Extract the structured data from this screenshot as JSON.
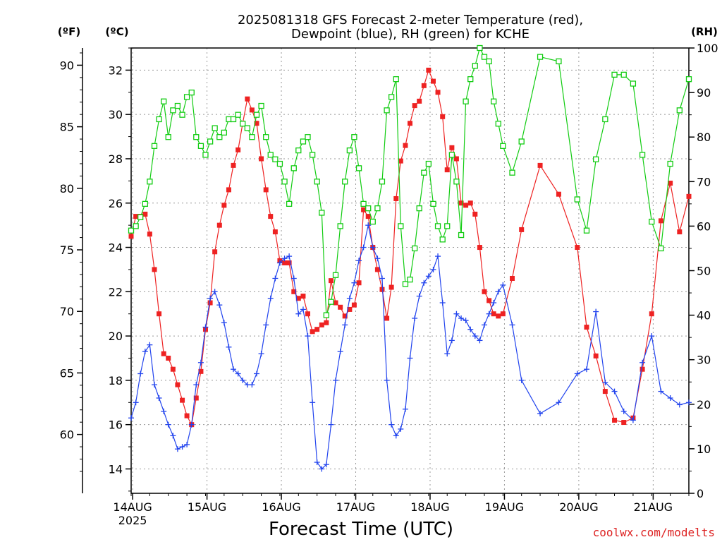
{
  "chart_data": {
    "type": "line",
    "title_line1": "2025081318 GFS Forecast 2-meter Temperature (red),",
    "title_line2": "Dewpoint (blue), RH (green) for KCHE",
    "xlabel": "Forecast Time (UTC)",
    "unit_f": "(ºF)",
    "unit_c": "(ºC)",
    "unit_rh": "(RH)",
    "credit": "coolwx.com/modelts",
    "x_ticks": [
      {
        "day": 13.77,
        "label": "14AUG",
        "sub": "2025"
      },
      {
        "day": 14.77,
        "label": "15AUG",
        "sub": ""
      },
      {
        "day": 15.77,
        "label": "16AUG",
        "sub": ""
      },
      {
        "day": 16.77,
        "label": "17AUG",
        "sub": ""
      },
      {
        "day": 17.77,
        "label": "18AUG",
        "sub": ""
      },
      {
        "day": 18.77,
        "label": "19AUG",
        "sub": ""
      },
      {
        "day": 19.77,
        "label": "20AUG",
        "sub": ""
      },
      {
        "day": 20.77,
        "label": "21AUG",
        "sub": ""
      }
    ],
    "x_range": [
      13.75,
      21.25
    ],
    "c_range": [
      12.9,
      33.0
    ],
    "c_ticks": [
      14,
      16,
      18,
      20,
      22,
      24,
      26,
      28,
      30,
      32
    ],
    "f_ticks": [
      60,
      65,
      70,
      75,
      80,
      85,
      90
    ],
    "rh_range": [
      0,
      100
    ],
    "rh_ticks": [
      0,
      10,
      20,
      30,
      40,
      50,
      60,
      70,
      80,
      90,
      100
    ],
    "grid": true,
    "colors": {
      "temperature": "#ee2222",
      "dewpoint": "#2244ee",
      "rh": "#11cc11"
    },
    "series": [
      {
        "name": "Temperature (red)",
        "axis": "C",
        "x": [
          13.75,
          13.813,
          13.875,
          13.938,
          14.0,
          14.063,
          14.125,
          14.188,
          14.25,
          14.313,
          14.375,
          14.438,
          14.5,
          14.563,
          14.625,
          14.688,
          14.75,
          14.813,
          14.875,
          14.938,
          15.0,
          15.063,
          15.125,
          15.188,
          15.25,
          15.313,
          15.375,
          15.438,
          15.5,
          15.563,
          15.625,
          15.688,
          15.75,
          15.813,
          15.875,
          15.938,
          16.0,
          16.063,
          16.125,
          16.188,
          16.25,
          16.313,
          16.375,
          16.438,
          16.5,
          16.563,
          16.625,
          16.688,
          16.75,
          16.813,
          16.875,
          16.938,
          17.0,
          17.063,
          17.125,
          17.188,
          17.25,
          17.313,
          17.375,
          17.438,
          17.5,
          17.563,
          17.625,
          17.688,
          17.75,
          17.813,
          17.875,
          17.938,
          18.0,
          18.063,
          18.125,
          18.188,
          18.25,
          18.313,
          18.375,
          18.438,
          18.5,
          18.563,
          18.625,
          18.688,
          18.75,
          18.875,
          19.0,
          19.25,
          19.5,
          19.75,
          19.875,
          20.0,
          20.125,
          20.25,
          20.375,
          20.5,
          20.625,
          20.75,
          20.875,
          21.0,
          21.125,
          21.25
        ],
        "values": [
          24.5,
          25.4,
          25.4,
          25.5,
          24.6,
          23.0,
          21.0,
          19.2,
          19.0,
          18.5,
          17.8,
          17.1,
          16.4,
          16.0,
          17.2,
          18.4,
          20.3,
          21.5,
          23.8,
          25.0,
          25.9,
          26.6,
          27.7,
          28.4,
          29.6,
          30.7,
          30.2,
          29.6,
          28.0,
          26.6,
          25.4,
          24.7,
          23.4,
          23.3,
          23.3,
          22.0,
          21.7,
          21.8,
          21.0,
          20.2,
          20.3,
          20.5,
          20.6,
          22.5,
          21.5,
          21.3,
          20.9,
          21.2,
          21.4,
          22.4,
          25.7,
          25.4,
          24.0,
          23.0,
          22.1,
          20.8,
          22.2,
          26.2,
          27.9,
          28.6,
          29.6,
          30.4,
          30.6,
          31.3,
          32.0,
          31.5,
          31.0,
          29.9,
          27.5,
          28.5,
          28.0,
          26.0,
          25.9,
          26.0,
          25.5,
          24.0,
          22.0,
          21.6,
          21.0,
          20.9,
          21.0,
          22.6,
          24.8,
          27.7,
          26.4,
          24.0,
          20.4,
          19.1,
          17.5,
          16.2,
          16.1,
          16.3,
          18.5,
          21.0,
          25.2,
          26.9,
          24.7,
          26.3
        ],
        "marker": "square-filled"
      },
      {
        "name": "Dewpoint (blue)",
        "axis": "C",
        "x": [
          13.75,
          13.813,
          13.875,
          13.938,
          14.0,
          14.063,
          14.125,
          14.188,
          14.25,
          14.313,
          14.375,
          14.438,
          14.5,
          14.563,
          14.625,
          14.688,
          14.75,
          14.813,
          14.875,
          14.938,
          15.0,
          15.063,
          15.125,
          15.188,
          15.25,
          15.313,
          15.375,
          15.438,
          15.5,
          15.563,
          15.625,
          15.688,
          15.75,
          15.813,
          15.875,
          15.938,
          16.0,
          16.063,
          16.125,
          16.188,
          16.25,
          16.313,
          16.375,
          16.438,
          16.5,
          16.563,
          16.625,
          16.688,
          16.75,
          16.813,
          16.875,
          16.938,
          17.0,
          17.063,
          17.125,
          17.188,
          17.25,
          17.313,
          17.375,
          17.438,
          17.5,
          17.563,
          17.625,
          17.688,
          17.75,
          17.813,
          17.875,
          17.938,
          18.0,
          18.063,
          18.125,
          18.188,
          18.25,
          18.313,
          18.375,
          18.438,
          18.5,
          18.563,
          18.625,
          18.688,
          18.75,
          18.875,
          19.0,
          19.25,
          19.5,
          19.75,
          19.875,
          20.0,
          20.125,
          20.25,
          20.375,
          20.5,
          20.625,
          20.75,
          20.875,
          21.0,
          21.125,
          21.25
        ],
        "values": [
          16.3,
          17.0,
          18.3,
          19.3,
          19.6,
          17.8,
          17.2,
          16.6,
          16.0,
          15.5,
          14.9,
          15.0,
          15.1,
          16.0,
          17.8,
          18.8,
          20.4,
          21.7,
          22.0,
          21.4,
          20.6,
          19.5,
          18.5,
          18.3,
          18.0,
          17.8,
          17.8,
          18.3,
          19.2,
          20.5,
          21.7,
          22.6,
          23.3,
          23.5,
          23.6,
          22.6,
          21.0,
          21.2,
          20.0,
          17.0,
          14.3,
          14.0,
          14.2,
          16.0,
          18.0,
          19.3,
          20.5,
          21.7,
          22.4,
          23.4,
          24.0,
          25.0,
          24.0,
          23.5,
          22.6,
          18.0,
          16.0,
          15.5,
          15.8,
          16.7,
          19.0,
          20.8,
          21.8,
          22.4,
          22.7,
          23.0,
          23.6,
          21.5,
          19.2,
          19.8,
          21.0,
          20.8,
          20.7,
          20.3,
          20.0,
          19.8,
          20.5,
          21.0,
          21.5,
          22.0,
          22.3,
          20.5,
          18.0,
          16.5,
          17.0,
          18.3,
          18.5,
          21.1,
          17.9,
          17.5,
          16.6,
          16.2,
          18.8,
          20.0,
          17.5,
          17.2,
          16.9,
          17.0
        ],
        "marker": "plus"
      },
      {
        "name": "RH (green)",
        "axis": "RH",
        "x": [
          13.75,
          13.813,
          13.875,
          13.938,
          14.0,
          14.063,
          14.125,
          14.188,
          14.25,
          14.313,
          14.375,
          14.438,
          14.5,
          14.563,
          14.625,
          14.688,
          14.75,
          14.813,
          14.875,
          14.938,
          15.0,
          15.063,
          15.125,
          15.188,
          15.25,
          15.313,
          15.375,
          15.438,
          15.5,
          15.563,
          15.625,
          15.688,
          15.75,
          15.813,
          15.875,
          15.938,
          16.0,
          16.063,
          16.125,
          16.188,
          16.25,
          16.313,
          16.375,
          16.438,
          16.5,
          16.563,
          16.625,
          16.688,
          16.75,
          16.813,
          16.875,
          16.938,
          17.0,
          17.063,
          17.125,
          17.188,
          17.25,
          17.313,
          17.375,
          17.438,
          17.5,
          17.563,
          17.625,
          17.688,
          17.75,
          17.813,
          17.875,
          17.938,
          18.0,
          18.063,
          18.125,
          18.188,
          18.25,
          18.313,
          18.375,
          18.438,
          18.5,
          18.563,
          18.625,
          18.688,
          18.75,
          18.875,
          19.0,
          19.25,
          19.5,
          19.75,
          19.875,
          20.0,
          20.125,
          20.25,
          20.375,
          20.5,
          20.625,
          20.75,
          20.875,
          21.0,
          21.125,
          21.25
        ],
        "values": [
          59,
          60,
          62,
          65,
          70,
          78,
          84,
          88,
          80,
          86,
          87,
          85,
          89,
          90,
          80,
          78,
          76,
          79,
          82,
          80,
          81,
          84,
          84,
          85,
          83,
          82,
          80,
          85,
          87,
          80,
          76,
          75,
          74,
          70,
          65,
          73,
          77,
          79,
          80,
          76,
          70,
          63,
          40,
          43,
          49,
          60,
          70,
          77,
          80,
          73,
          65,
          64,
          61,
          64,
          70,
          86,
          89,
          93,
          60,
          47,
          48,
          55,
          64,
          72,
          74,
          65,
          60,
          57,
          60,
          76,
          70,
          58,
          88,
          93,
          96,
          100,
          98,
          97,
          88,
          83,
          78,
          72,
          79,
          98,
          97,
          66,
          59,
          75,
          84,
          94,
          94,
          92,
          76,
          61,
          55,
          74,
          86,
          93
        ],
        "marker": "square-open"
      }
    ]
  }
}
